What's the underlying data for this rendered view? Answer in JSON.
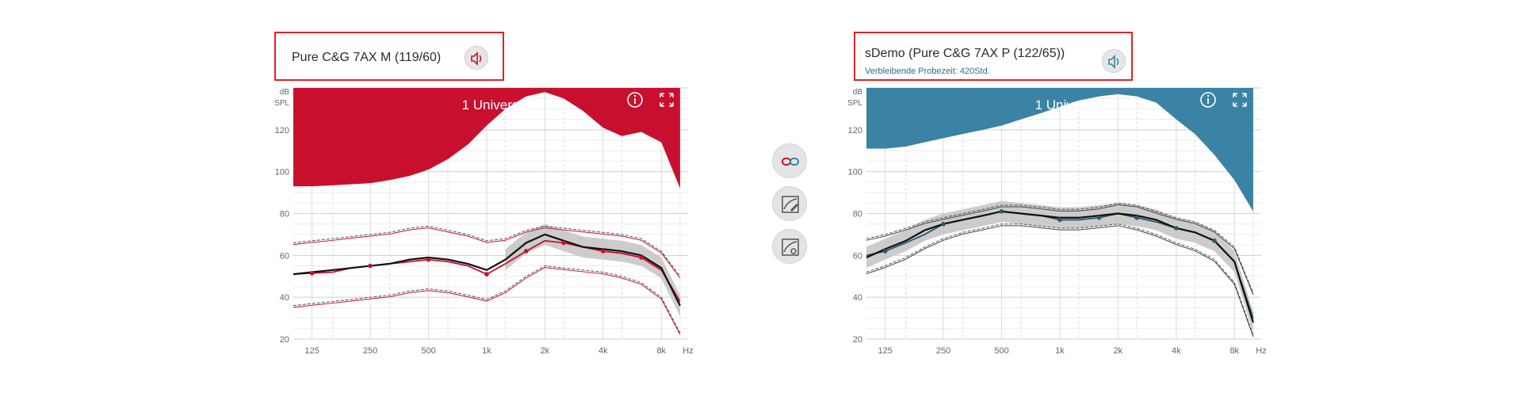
{
  "left": {
    "title": "Pure C&G 7AX M (119/60)",
    "subtitle": "",
    "program": "1 Universell",
    "accent": "#c8102e",
    "speaker_icon": "speaker-icon"
  },
  "right": {
    "title": "sDemo (Pure C&G 7AX P (122/65))",
    "subtitle": "Verbleibende Probezeit: 420Std.",
    "program": "1 Universell",
    "accent": "#3a83a4",
    "speaker_icon": "speaker-icon"
  },
  "middle_buttons": [
    "link-icon",
    "edit-curve-icon",
    "fit-curve-icon"
  ],
  "axis": {
    "y_unit_top": "dB",
    "y_unit_bottom": "SPL",
    "x_unit": "Hz",
    "yticks": [
      "120",
      "100",
      "80",
      "60",
      "40",
      "20"
    ],
    "xticks": [
      "125",
      "250",
      "500",
      "1k",
      "2k",
      "4k",
      "8k"
    ]
  },
  "chart_data": [
    {
      "type": "line",
      "title": "1 Universell",
      "xlabel": "Hz",
      "ylabel": "dB SPL",
      "x_scale": "log",
      "xlim": [
        100,
        11000
      ],
      "ylim": [
        20,
        140
      ],
      "grid": true,
      "x": [
        100,
        125,
        160,
        200,
        250,
        315,
        400,
        500,
        630,
        800,
        1000,
        1250,
        1600,
        2000,
        2500,
        3150,
        4000,
        5000,
        6300,
        8000,
        10000
      ],
      "mpo_area": [
        93,
        93,
        93.5,
        94,
        94.5,
        96,
        98,
        101,
        106,
        113,
        122,
        130,
        136,
        138,
        135,
        129,
        121,
        117,
        119,
        114,
        92
      ],
      "series": [
        {
          "values": [
            51,
            52,
            53,
            54,
            55,
            56,
            58,
            59,
            58,
            56,
            53,
            58,
            66,
            70,
            67,
            64,
            63,
            62,
            60,
            54,
            36
          ]
        },
        {
          "values": [
            51,
            51.5,
            52,
            54,
            55,
            56,
            57,
            58,
            57,
            55,
            51,
            56,
            62,
            67,
            66,
            64,
            62,
            61,
            59,
            53,
            38
          ]
        },
        {
          "values": [
            66,
            67,
            68,
            69,
            70,
            71,
            73,
            74,
            72,
            70,
            67,
            68,
            72,
            74,
            73,
            72,
            71,
            70,
            68,
            62,
            50
          ]
        },
        {
          "values": [
            36,
            37,
            38,
            39,
            40,
            41,
            43,
            44,
            43,
            41,
            39,
            43,
            50,
            55,
            54,
            53,
            52,
            50,
            47,
            40,
            23
          ]
        }
      ]
    },
    {
      "type": "line",
      "title": "1 Universell",
      "xlabel": "Hz",
      "ylabel": "dB SPL",
      "x_scale": "log",
      "xlim": [
        100,
        11000
      ],
      "ylim": [
        20,
        140
      ],
      "grid": true,
      "x": [
        100,
        125,
        160,
        200,
        250,
        315,
        400,
        500,
        630,
        800,
        1000,
        1250,
        1600,
        2000,
        2500,
        3150,
        4000,
        5000,
        6300,
        8000,
        10000
      ],
      "mpo_area": [
        111,
        111,
        112,
        114,
        116,
        118,
        120,
        122,
        125,
        128,
        131,
        134,
        136,
        137,
        136,
        133,
        125,
        118,
        108,
        96,
        81
      ],
      "series": [
        {
          "values": [
            59,
            63,
            67,
            72,
            75,
            77,
            79,
            81,
            80,
            79,
            78,
            78,
            79,
            80,
            79,
            77,
            73,
            71,
            67,
            57,
            28
          ]
        },
        {
          "values": [
            60,
            62,
            66,
            70,
            75,
            77,
            79,
            81,
            80,
            79,
            77,
            77,
            78,
            80,
            78,
            76,
            73,
            71,
            67,
            57,
            30
          ]
        },
        {
          "values": [
            68,
            70,
            73,
            76,
            78,
            80,
            82,
            84,
            84,
            83,
            82,
            82,
            83,
            85,
            84,
            81,
            78,
            76,
            72,
            64,
            42
          ]
        },
        {
          "values": [
            52,
            55,
            59,
            64,
            68,
            71,
            73,
            75,
            75,
            74,
            73,
            73,
            74,
            75,
            73,
            70,
            66,
            63,
            58,
            47,
            22
          ]
        }
      ]
    }
  ]
}
